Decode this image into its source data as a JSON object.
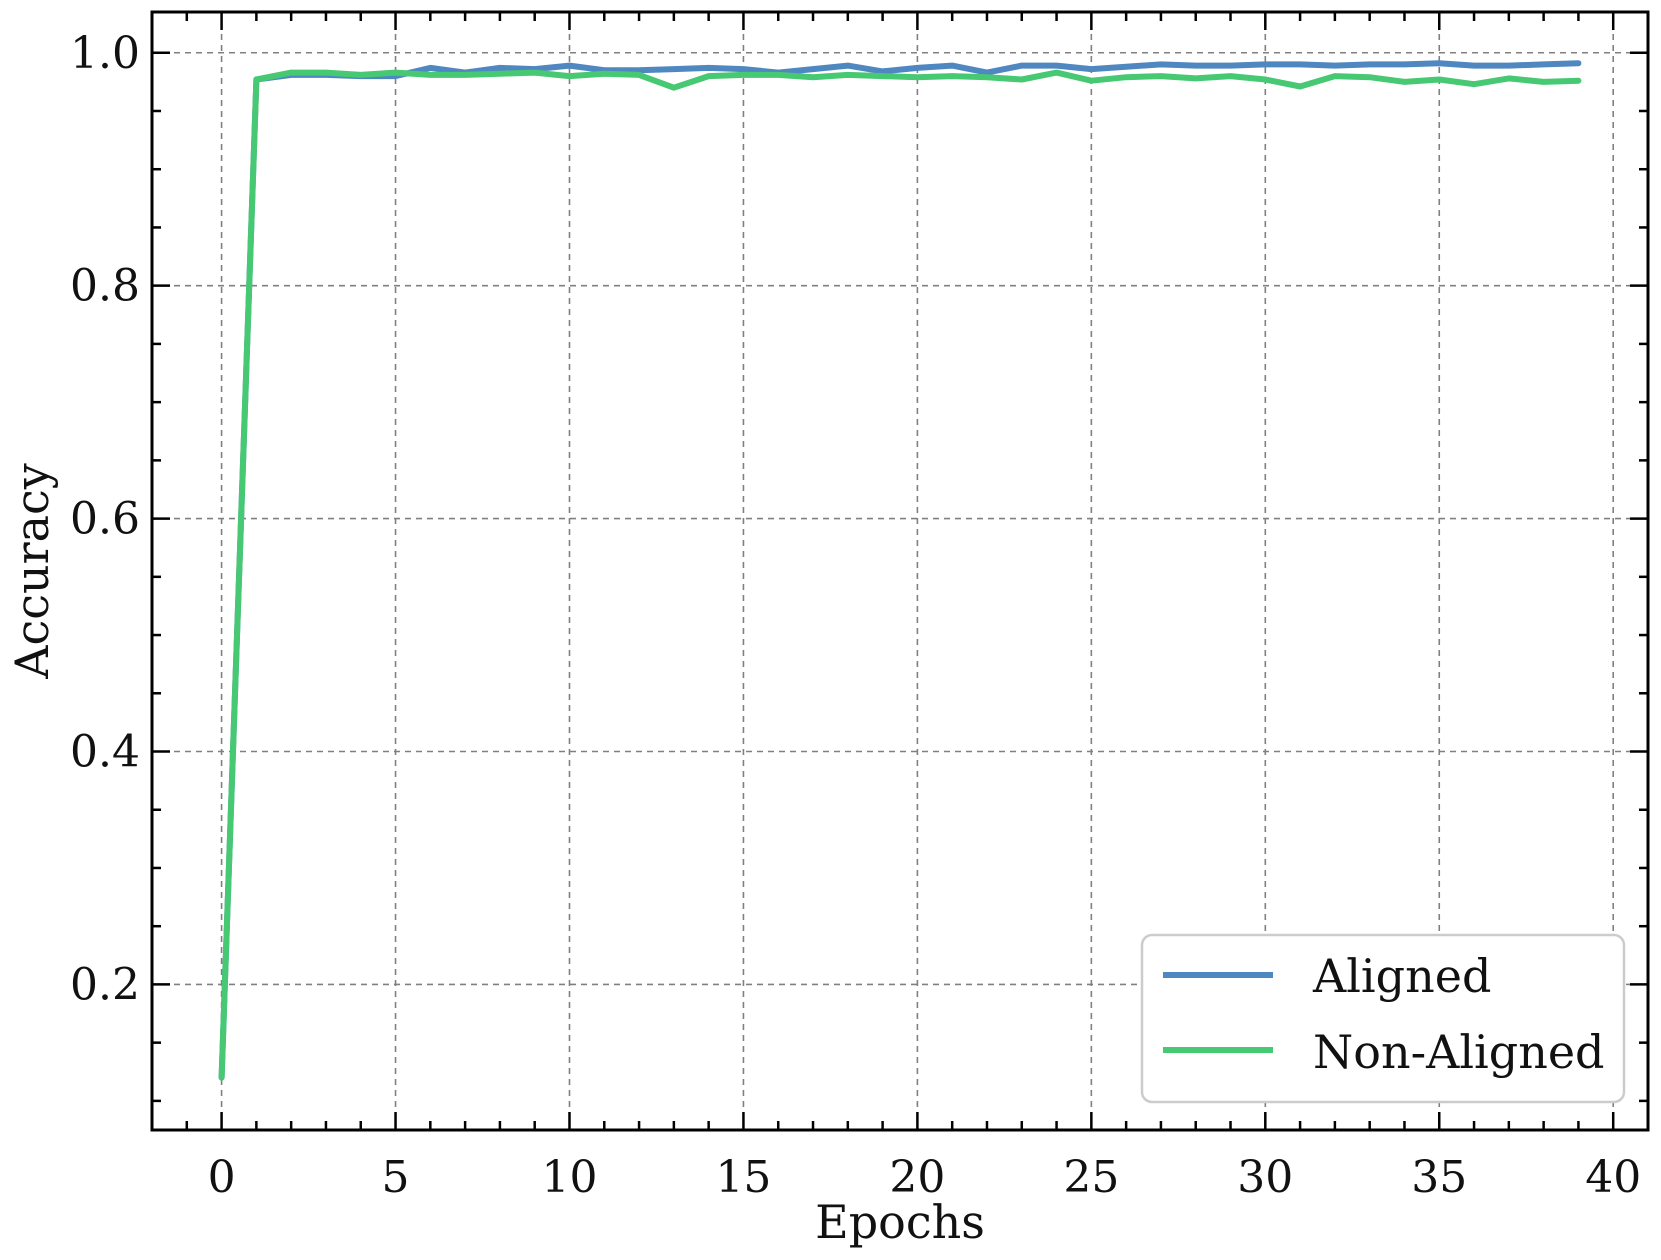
{
  "chart_data": {
    "type": "line",
    "title": "",
    "xlabel": "Epochs",
    "ylabel": "Accuracy",
    "xlim": [
      -2,
      41
    ],
    "ylim": [
      0.075,
      1.035
    ],
    "grid": true,
    "legend_position": "bottom-right",
    "x_ticks": [
      0,
      5,
      10,
      15,
      20,
      25,
      30,
      35,
      40
    ],
    "x_tick_labels": [
      "0",
      "5",
      "10",
      "15",
      "20",
      "25",
      "30",
      "35",
      "40"
    ],
    "y_ticks": [
      0.2,
      0.4,
      0.6,
      0.8,
      1.0
    ],
    "y_tick_labels": [
      "0.2",
      "0.4",
      "0.6",
      "0.8",
      "1.0"
    ],
    "x": [
      0,
      1,
      2,
      3,
      4,
      5,
      6,
      7,
      8,
      9,
      10,
      11,
      12,
      13,
      14,
      15,
      16,
      17,
      18,
      19,
      20,
      21,
      22,
      23,
      24,
      25,
      26,
      27,
      28,
      29,
      30,
      31,
      32,
      33,
      34,
      35,
      36,
      37,
      38,
      39
    ],
    "series": [
      {
        "name": "Aligned",
        "color": "#4f87c0",
        "values": [
          0.12,
          0.977,
          0.981,
          0.981,
          0.98,
          0.98,
          0.987,
          0.983,
          0.987,
          0.986,
          0.989,
          0.985,
          0.985,
          0.986,
          0.987,
          0.986,
          0.983,
          0.986,
          0.989,
          0.984,
          0.987,
          0.989,
          0.983,
          0.989,
          0.989,
          0.986,
          0.988,
          0.99,
          0.989,
          0.989,
          0.99,
          0.99,
          0.989,
          0.99,
          0.99,
          0.991,
          0.989,
          0.989,
          0.99,
          0.991
        ]
      },
      {
        "name": "Non-Aligned",
        "color": "#47c872",
        "values": [
          0.12,
          0.977,
          0.983,
          0.983,
          0.981,
          0.983,
          0.981,
          0.981,
          0.982,
          0.983,
          0.98,
          0.982,
          0.981,
          0.97,
          0.98,
          0.981,
          0.981,
          0.979,
          0.981,
          0.98,
          0.979,
          0.98,
          0.979,
          0.977,
          0.983,
          0.976,
          0.979,
          0.98,
          0.978,
          0.98,
          0.977,
          0.971,
          0.98,
          0.979,
          0.975,
          0.977,
          0.973,
          0.978,
          0.975,
          0.976
        ]
      }
    ]
  }
}
